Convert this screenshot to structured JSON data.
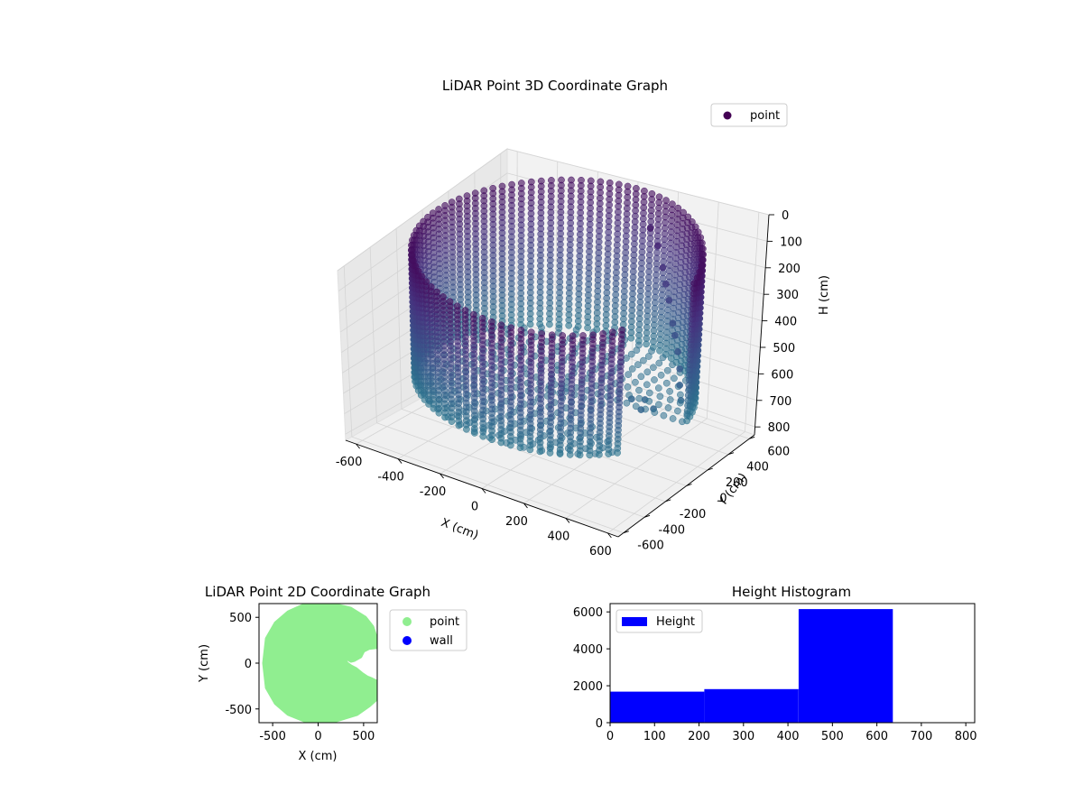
{
  "chart_data": [
    {
      "type": "scatter3d",
      "title": "LiDAR Point 3D Coordinate Graph",
      "xlabel": "X (cm)",
      "ylabel": "Y (cm)",
      "zlabel": "H (cm)",
      "xlim": [
        -650,
        650
      ],
      "ylim": [
        -650,
        650
      ],
      "zlim": [
        0,
        830
      ],
      "z_inverted": true,
      "x_ticks": [
        -600,
        -400,
        -200,
        0,
        200,
        400,
        600
      ],
      "y_ticks": [
        -600,
        -400,
        -200,
        0,
        200,
        400,
        600
      ],
      "z_ticks": [
        0,
        100,
        200,
        300,
        400,
        500,
        600,
        700,
        800
      ],
      "legend": {
        "entries": [
          "point"
        ],
        "placement": "upper-right"
      },
      "grid": true,
      "colormap": "viridis",
      "color_stops": [
        "#440154",
        "#46327e",
        "#365c8d",
        "#277f8e"
      ],
      "series": [
        {
          "name": "point",
          "wall_radius_cm": 600,
          "wall_height_range_cm": [
            0,
            600
          ],
          "floor_height_cm": 600,
          "opening_angle_range_deg": [
            -35,
            5
          ],
          "floor_points": [
            [
              0,
              0,
              600
            ],
            [
              200,
              0,
              600
            ],
            [
              -200,
              0,
              600
            ],
            [
              0,
              200,
              600
            ],
            [
              0,
              -200,
              600
            ],
            [
              400,
              0,
              600
            ],
            [
              -400,
              0,
              600
            ],
            [
              0,
              400,
              600
            ],
            [
              0,
              -400,
              600
            ]
          ],
          "obstacle_points": [
            {
              "x": 120,
              "y": 560,
              "h": 120
            },
            {
              "x": 160,
              "y": 560,
              "h": 180
            },
            {
              "x": 200,
              "y": 540,
              "h": 250
            },
            {
              "x": 230,
              "y": 520,
              "h": 300
            },
            {
              "x": 260,
              "y": 500,
              "h": 350
            },
            {
              "x": 300,
              "y": 470,
              "h": 420
            },
            {
              "x": 330,
              "y": 440,
              "h": 450
            },
            {
              "x": 380,
              "y": 380,
              "h": 480
            },
            {
              "x": 420,
              "y": 330,
              "h": 520
            },
            {
              "x": 450,
              "y": 280,
              "h": 560
            },
            {
              "x": 480,
              "y": 240,
              "h": 600
            },
            {
              "x": 350,
              "y": 150,
              "h": 600
            },
            {
              "x": 420,
              "y": 100,
              "h": 600
            },
            {
              "x": 380,
              "y": 60,
              "h": 600
            },
            {
              "x": 300,
              "y": 120,
              "h": 600
            }
          ]
        }
      ]
    },
    {
      "type": "scatter",
      "title": "LiDAR Point 2D Coordinate Graph",
      "xlabel": "X (cm)",
      "ylabel": "Y (cm)",
      "xlim": [
        -650,
        650
      ],
      "ylim": [
        -650,
        650
      ],
      "x_ticks": [
        -500,
        0,
        500
      ],
      "y_ticks": [
        -500,
        0,
        500
      ],
      "legend": {
        "entries": [
          "point",
          "wall"
        ],
        "placement": "outside-right"
      },
      "series": [
        {
          "name": "point",
          "color": "#90ee90",
          "outline_xy": [
            [
              -330,
              560
            ],
            [
              -130,
              650
            ],
            [
              150,
              650
            ],
            [
              360,
              600
            ],
            [
              520,
              500
            ],
            [
              600,
              400
            ],
            [
              650,
              250
            ],
            [
              650,
              170
            ],
            [
              560,
              160
            ],
            [
              500,
              130
            ],
            [
              470,
              70
            ],
            [
              400,
              30
            ],
            [
              360,
              20
            ],
            [
              310,
              50
            ],
            [
              300,
              30
            ],
            [
              320,
              0
            ],
            [
              360,
              -30
            ],
            [
              420,
              -60
            ],
            [
              480,
              -110
            ],
            [
              540,
              -150
            ],
            [
              590,
              -170
            ],
            [
              650,
              -200
            ],
            [
              650,
              -390
            ],
            [
              560,
              -470
            ],
            [
              430,
              -560
            ],
            [
              170,
              -640
            ],
            [
              -130,
              -640
            ],
            [
              -330,
              -560
            ],
            [
              -470,
              -440
            ],
            [
              -570,
              -270
            ],
            [
              -600,
              0
            ],
            [
              -570,
              270
            ],
            [
              -470,
              440
            ]
          ]
        },
        {
          "name": "wall",
          "color": "#0000ff",
          "values": []
        }
      ]
    },
    {
      "type": "bar",
      "title": "Height Histogram",
      "xlim": [
        0,
        820
      ],
      "ylim": [
        0,
        6450
      ],
      "x_ticks": [
        0,
        100,
        200,
        300,
        400,
        500,
        600,
        700,
        800
      ],
      "y_ticks": [
        0,
        2000,
        4000,
        6000
      ],
      "legend": {
        "entries": [
          "Height"
        ],
        "placement": "upper-left"
      },
      "series": [
        {
          "name": "Height",
          "color": "#0000ff",
          "bins": [
            0,
            212,
            424,
            636,
            848
          ],
          "counts": [
            1680,
            1820,
            6150,
            0
          ]
        }
      ]
    }
  ]
}
